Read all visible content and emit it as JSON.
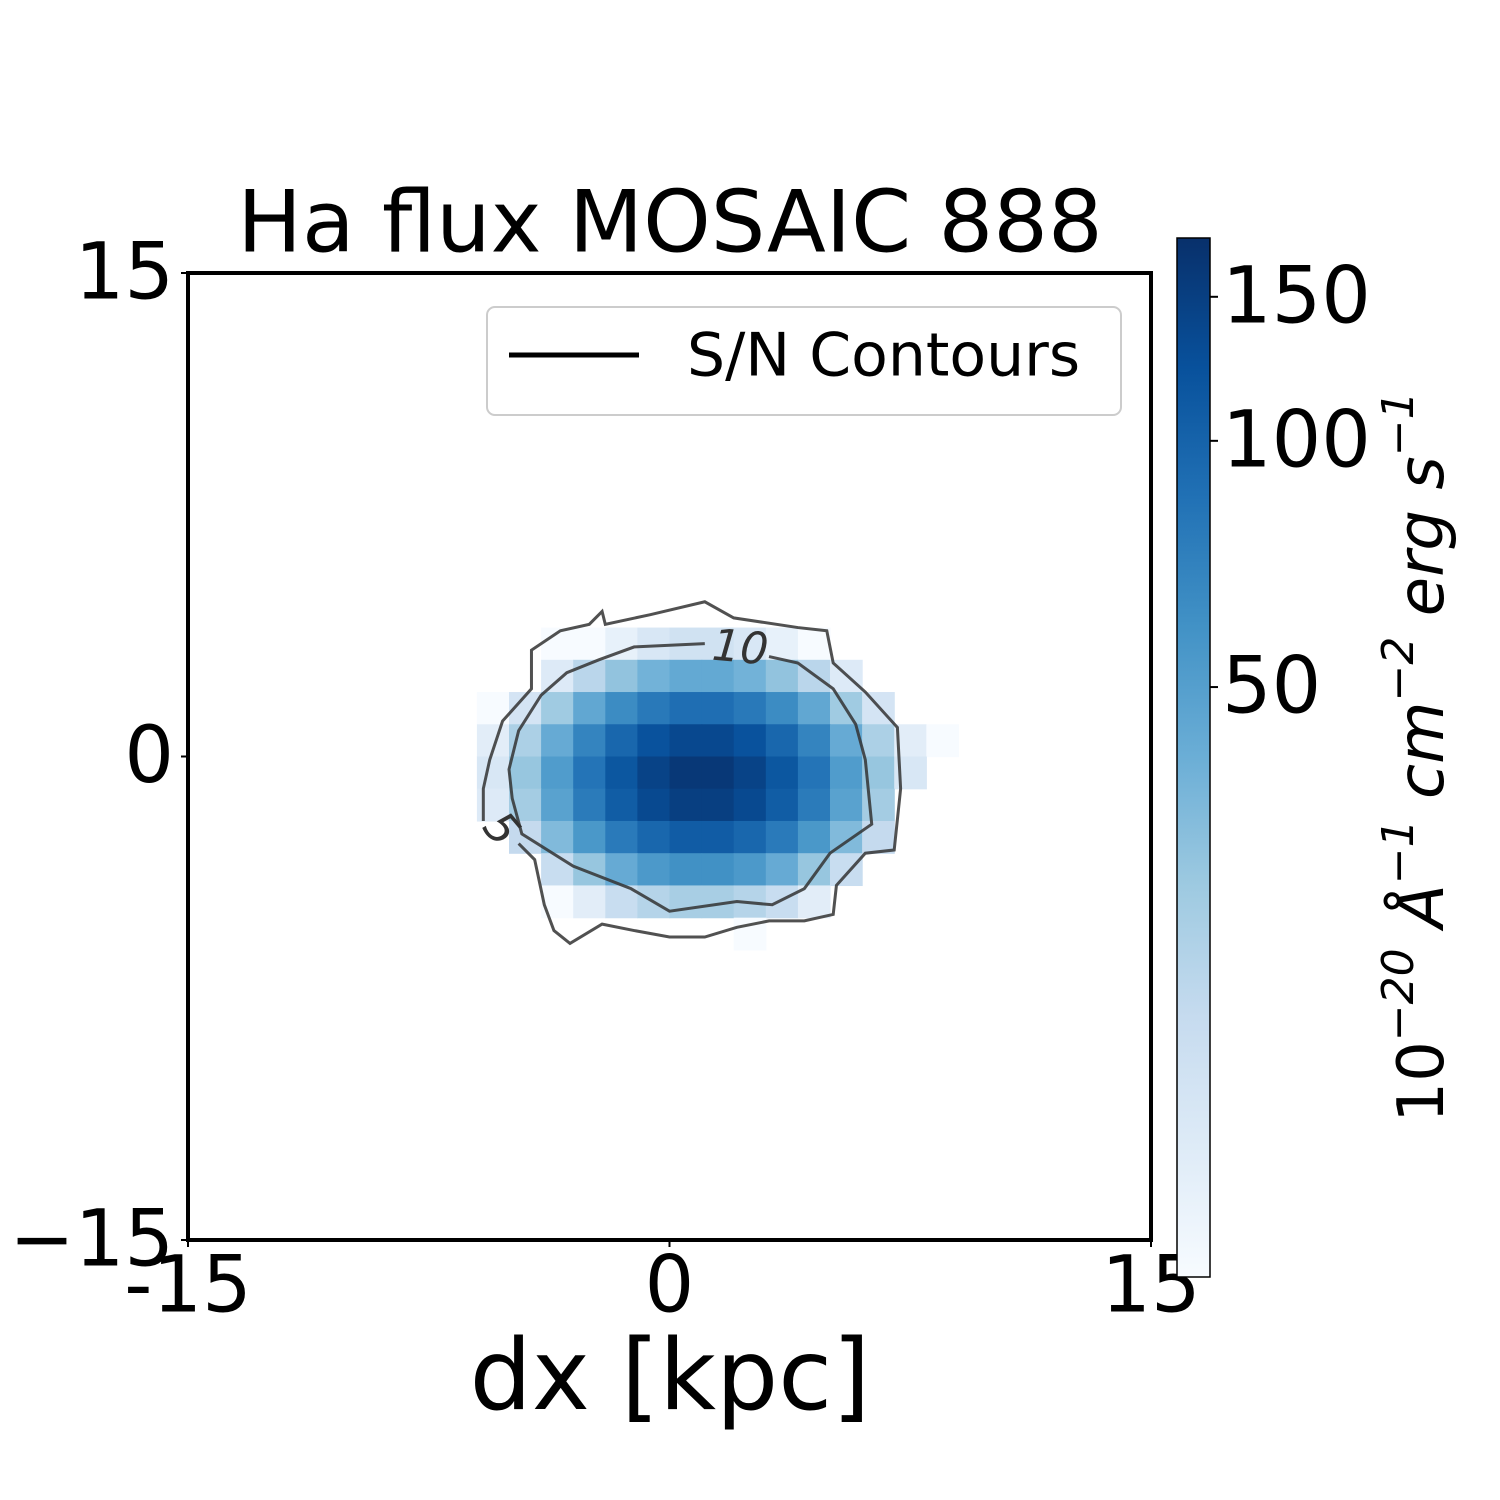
{
  "chart_data": {
    "type": "heatmap",
    "title": "Ha flux MOSAIC 888",
    "x_label": "dx [kpc]",
    "xlim": [
      -15,
      15
    ],
    "ylim": [
      -15,
      15
    ],
    "xticks": [
      -15,
      0,
      15
    ],
    "yticks": [
      15,
      0,
      {
        "value": -15,
        "label": "−15"
      }
    ],
    "x": [
      -5.5,
      -4.5,
      -3.5,
      -2.5,
      -1.5,
      -0.5,
      0.5,
      1.5,
      2.5,
      3.5,
      4.5,
      5.5,
      6.5,
      7.5,
      8.5
    ],
    "y": [
      3.5,
      2.5,
      1.5,
      0.5,
      -0.5,
      -1.5,
      -2.5,
      -3.5,
      -4.5,
      -5.5
    ],
    "z": [
      [
        null,
        null,
        6,
        9,
        12,
        15,
        17,
        17,
        15,
        12,
        9,
        null,
        null,
        null,
        null
      ],
      [
        null,
        null,
        14,
        22,
        31,
        39,
        44,
        44,
        39,
        31,
        22,
        14,
        null,
        null,
        null
      ],
      [
        8,
        16,
        28,
        45,
        63,
        78,
        88,
        88,
        78,
        63,
        45,
        28,
        16,
        null,
        null
      ],
      [
        13,
        25,
        43,
        69,
        96,
        121,
        135,
        135,
        121,
        96,
        69,
        43,
        25,
        13,
        6
      ],
      [
        15,
        30,
        52,
        82,
        115,
        144,
        162,
        162,
        144,
        115,
        82,
        52,
        30,
        15,
        null
      ],
      [
        14,
        27,
        48,
        76,
        107,
        134,
        150,
        150,
        134,
        107,
        76,
        48,
        27,
        null,
        null
      ],
      [
        null,
        20,
        35,
        55,
        77,
        96,
        108,
        108,
        96,
        77,
        55,
        35,
        20,
        null,
        null
      ],
      [
        null,
        null,
        19,
        30,
        43,
        54,
        60,
        60,
        54,
        43,
        30,
        19,
        null,
        null,
        null
      ],
      [
        null,
        null,
        8,
        13,
        19,
        23,
        26,
        26,
        23,
        19,
        13,
        null,
        null,
        null,
        null
      ],
      [
        null,
        null,
        null,
        null,
        null,
        null,
        null,
        null,
        8,
        null,
        null,
        null,
        null,
        null,
        null
      ]
    ],
    "cmap": "Blues",
    "colorbar": {
      "label": [
        "10",
        "−20",
        " Å",
        "−1",
        " cm",
        "−2",
        " erg s",
        "−1"
      ],
      "lim": [
        9.5,
        177
      ],
      "ticks": [
        50,
        100,
        150
      ],
      "scale": "log"
    },
    "contours": [
      {
        "level": 5,
        "color": "#333333",
        "x": [
          -5.8,
          -5.8,
          -5.6,
          -5.2,
          -4.3,
          -4.3,
          -3.4,
          -2.5,
          -2.1,
          -2.0,
          -0.6,
          1.1,
          2.0,
          4.0,
          4.9,
          5.1,
          6.1,
          7.1,
          7.2,
          7.0,
          6.1,
          5.2,
          5.1,
          4.2,
          3.1,
          2.1,
          1.1,
          0.0,
          -1.1,
          -2.1,
          -3.1,
          -3.6,
          -3.9,
          -4.2,
          -4.7
        ],
        "y": [
          -2.0,
          -1.0,
          -0.1,
          1.1,
          2.1,
          3.3,
          3.9,
          4.1,
          4.5,
          4.1,
          4.4,
          4.8,
          4.3,
          4.0,
          3.9,
          2.9,
          2.0,
          0.9,
          -1.0,
          -2.9,
          -3.0,
          -4.0,
          -4.9,
          -5.1,
          -5.1,
          -5.3,
          -5.6,
          -5.6,
          -5.4,
          -5.2,
          -5.8,
          -5.4,
          -4.6,
          -3.2,
          -2.7
        ],
        "label_at": [
          -5.3,
          -2.3
        ],
        "label_angle": 50
      },
      {
        "level": 10,
        "color": "#333333",
        "x": [
          3.1,
          4.0,
          5.1,
          5.8,
          6.1,
          6.3,
          5.0,
          4.2,
          3.2,
          2.1,
          0.0,
          -1.2,
          -3.0,
          -4.6,
          -4.9,
          -5.0,
          -4.7,
          -4.0,
          -3.2,
          -2.2,
          -1.1,
          1.1
        ],
        "y": [
          3.1,
          2.9,
          2.1,
          1.0,
          -0.1,
          -2.1,
          -3.0,
          -4.1,
          -4.6,
          -4.5,
          -4.8,
          -4.1,
          -3.4,
          -2.4,
          -1.3,
          -0.4,
          0.8,
          1.9,
          2.6,
          3.0,
          3.4,
          3.5
        ],
        "label_at": [
          2.2,
          3.3
        ],
        "label_angle": 5
      }
    ],
    "legend": {
      "label": "S/N Contours",
      "color": "#000000",
      "position": "upper right"
    }
  }
}
